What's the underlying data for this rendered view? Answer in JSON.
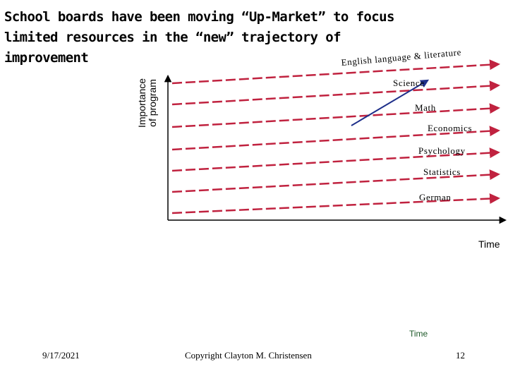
{
  "title": "School boards have been moving “Up-Market” to focus limited resources in the “new” trajectory of improvement",
  "y_axis_label": [
    "Importance",
    "of program"
  ],
  "x_axis_label": "Time",
  "secondary_time_label": "Time",
  "trajectories": [
    {
      "label": "English language & literature"
    },
    {
      "label": "Science"
    },
    {
      "label": "Math"
    },
    {
      "label": "Economics"
    },
    {
      "label": "Psychology"
    },
    {
      "label": "Statistics"
    },
    {
      "label": "German"
    }
  ],
  "colors": {
    "trajectory": "#c0223f",
    "arrow": "#1e2f8a",
    "axis": "#000000",
    "time2": "#1f5a2a"
  },
  "footer": {
    "date": "9/17/2021",
    "copyright": "Copyright Clayton M. Christensen",
    "page": "12"
  }
}
